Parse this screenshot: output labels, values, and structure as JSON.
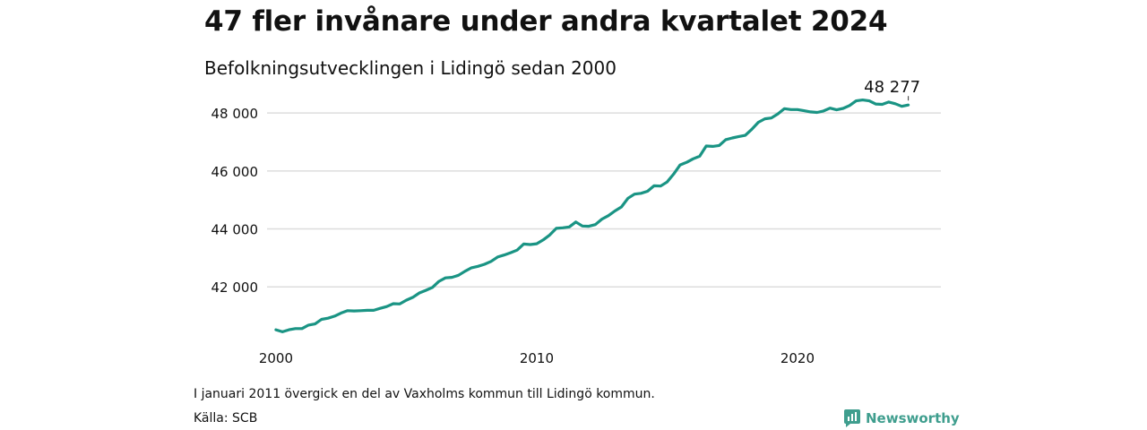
{
  "header": {
    "title": "47 fler invånare under andra kvartalet 2024",
    "subtitle": "Befolkningsutvecklingen i Lidingö sedan 2000"
  },
  "footer": {
    "note": "I januari 2011 övergick en del av Vaxholms kommun till Lidingö kommun.",
    "source": "Källa: SCB",
    "brand": "Newsworthy"
  },
  "colors": {
    "line": "#1a9484",
    "grid": "#dddddd",
    "brand": "#3f9e8e"
  },
  "chart_data": {
    "type": "line",
    "title": "47 fler invånare under andra kvartalet 2024",
    "subtitle": "Befolkningsutvecklingen i Lidingö sedan 2000",
    "xlabel": "",
    "ylabel": "",
    "x_ticks": [
      2000,
      2010,
      2020
    ],
    "x_tick_labels": [
      "2000",
      "2010",
      "2020"
    ],
    "y_ticks": [
      42000,
      44000,
      46000,
      48000
    ],
    "y_tick_labels": [
      "42 000",
      "44 000",
      "46 000",
      "48 000"
    ],
    "xlim": [
      1999.9,
      2025.5
    ],
    "ylim": [
      40400,
      48500
    ],
    "grid": "horizontal",
    "end_label": "48 277",
    "series": [
      {
        "x": [
          2000.0,
          2000.25,
          2000.5,
          2000.75,
          2001.0,
          2001.25,
          2001.5,
          2001.75,
          2002.0,
          2002.25,
          2002.5,
          2002.75,
          2003.0,
          2003.25,
          2003.5,
          2003.75,
          2004.0,
          2004.25,
          2004.5,
          2004.75,
          2005.0,
          2005.25,
          2005.5,
          2005.75,
          2006.0,
          2006.25,
          2006.5,
          2006.75,
          2007.0,
          2007.25,
          2007.5,
          2007.75,
          2008.0,
          2008.25,
          2008.5,
          2008.75,
          2009.0,
          2009.25,
          2009.5,
          2009.75,
          2010.0,
          2010.25,
          2010.5,
          2010.75,
          2011.0,
          2011.25,
          2011.5,
          2011.75,
          2012.0,
          2012.25,
          2012.5,
          2012.75,
          2013.0,
          2013.25,
          2013.5,
          2013.75,
          2014.0,
          2014.25,
          2014.5,
          2014.75,
          2015.0,
          2015.25,
          2015.5,
          2015.75,
          2016.0,
          2016.25,
          2016.5,
          2016.75,
          2017.0,
          2017.25,
          2017.5,
          2017.75,
          2018.0,
          2018.25,
          2018.5,
          2018.75,
          2019.0,
          2019.25,
          2019.5,
          2019.75,
          2020.0,
          2020.25,
          2020.5,
          2020.75,
          2021.0,
          2021.25,
          2021.5,
          2021.75,
          2022.0,
          2022.25,
          2022.5,
          2022.75,
          2023.0,
          2023.25,
          2023.5,
          2023.75,
          2024.0,
          2024.25
        ],
        "values": [
          40520,
          40450,
          40520,
          40560,
          40560,
          40680,
          40720,
          40880,
          40920,
          40990,
          41100,
          41180,
          41170,
          41180,
          41190,
          41190,
          41260,
          41320,
          41420,
          41410,
          41540,
          41640,
          41790,
          41880,
          41980,
          42190,
          42310,
          42330,
          42400,
          42540,
          42660,
          42710,
          42780,
          42880,
          43030,
          43100,
          43180,
          43270,
          43480,
          43460,
          43490,
          43620,
          43790,
          44020,
          44040,
          44070,
          44240,
          44100,
          44090,
          44150,
          44340,
          44460,
          44620,
          44760,
          45060,
          45200,
          45230,
          45300,
          45490,
          45480,
          45620,
          45890,
          46210,
          46300,
          46420,
          46510,
          46860,
          46850,
          46880,
          47080,
          47140,
          47190,
          47230,
          47440,
          47680,
          47800,
          47830,
          47970,
          48150,
          48120,
          48120,
          48080,
          48040,
          48020,
          48070,
          48170,
          48110,
          48160,
          48260,
          48420,
          48450,
          48420,
          48310,
          48300,
          48380,
          48320,
          48230,
          48277
        ]
      }
    ]
  }
}
